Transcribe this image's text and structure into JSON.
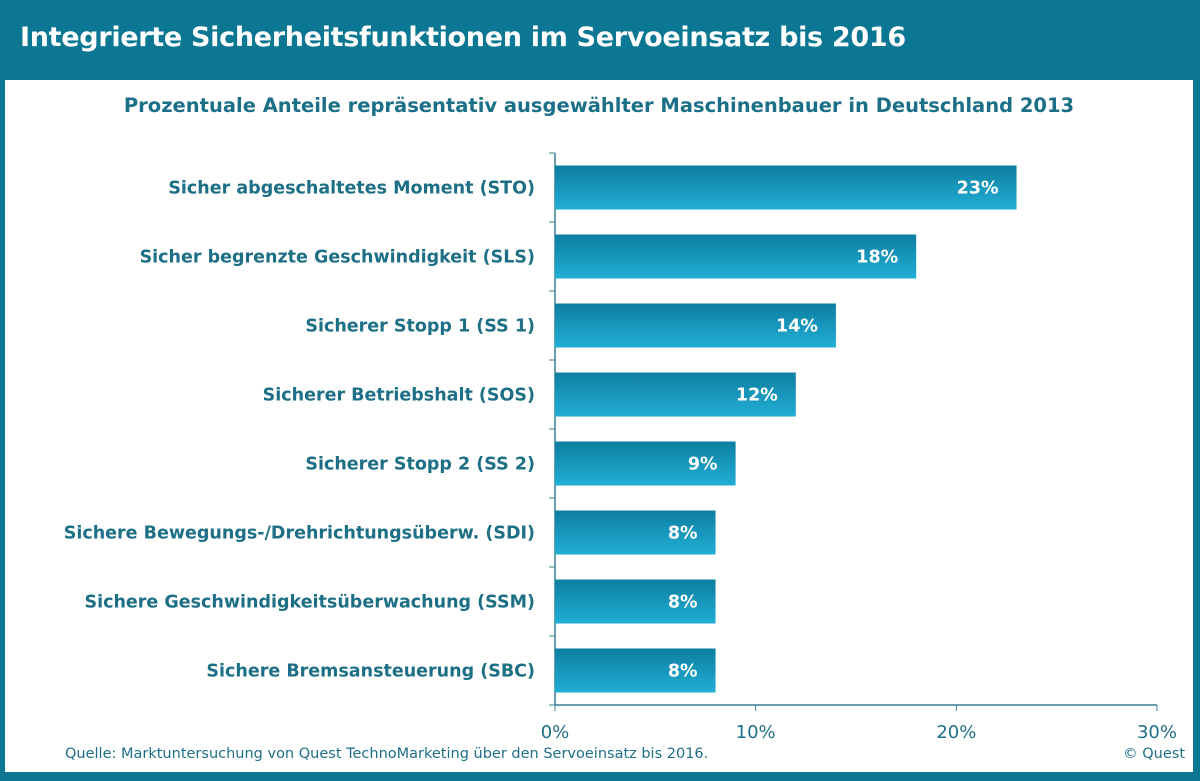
{
  "title": "Integrierte Sicherheitsfunktionen im Servoeinsatz  bis 2016",
  "source": "Quelle: Marktuntersuchung von Quest TechnoMarketing über den Servoeinsatz bis 2016.",
  "copyright": "© Quest",
  "colors": {
    "header": "#0b7793",
    "bar_top": "#0d7ea0",
    "bar_bottom": "#22aed6",
    "text": "#1d6f86"
  },
  "chart_data": {
    "type": "bar",
    "orientation": "horizontal",
    "title": "Prozentuale Anteile repräsentativ ausgewählter Maschinenbauer in Deutschland 2013",
    "categories": [
      "Sicher abgeschaltetes Moment (STO)",
      "Sicher begrenzte Geschwindigkeit (SLS)",
      "Sicherer Stopp 1 (SS 1)",
      "Sicherer Betriebshalt (SOS)",
      "Sicherer Stopp 2 (SS 2)",
      "Sichere Bewegungs-/Drehrichtungsüberw. (SDI)",
      "Sichere Geschwindigkeitsüberwachung (SSM)",
      "Sichere Bremsansteuerung (SBC)"
    ],
    "values": [
      23,
      18,
      14,
      12,
      9,
      8,
      8,
      8
    ],
    "data_labels": [
      "23%",
      "18%",
      "14%",
      "12%",
      "9%",
      "8%",
      "8%",
      "8%"
    ],
    "xlim": [
      0,
      30
    ],
    "x_ticks": [
      "0%",
      "10%",
      "20%",
      "30%"
    ],
    "grid": false,
    "legend": "none"
  }
}
